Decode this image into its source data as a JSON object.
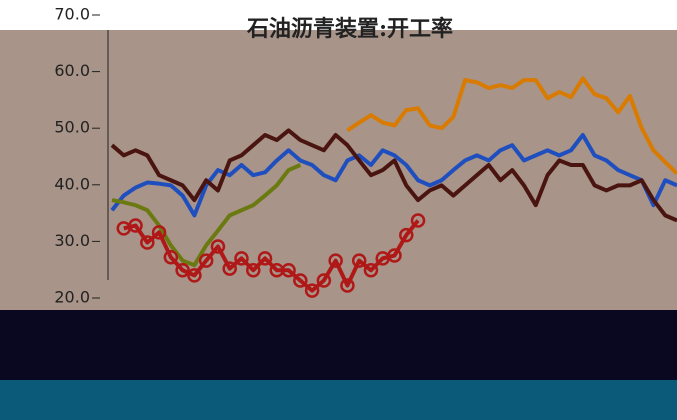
{
  "chart_data": {
    "type": "line",
    "title": "石油沥青装置:开工率",
    "categories": [
      null,
      null,
      null,
      null,
      null,
      null,
      null,
      null,
      null,
      null,
      null,
      null,
      null,
      null,
      null,
      null,
      null,
      null,
      null,
      null,
      null,
      null,
      null,
      null,
      null,
      null,
      null,
      null,
      null,
      null,
      null,
      null,
      null,
      null,
      null,
      null,
      null,
      null,
      null,
      null,
      null,
      null,
      null,
      null,
      null,
      null,
      null,
      null,
      null
    ],
    "ylim": [
      20,
      70
    ],
    "yticks": [
      {
        "value": 20,
        "label": "20.0"
      },
      {
        "value": 30,
        "label": "30.0"
      },
      {
        "value": 40,
        "label": "40.0"
      },
      {
        "value": 50,
        "label": "50.0"
      },
      {
        "value": 60,
        "label": "60.0"
      },
      {
        "value": 70,
        "label": "70.0"
      }
    ],
    "series": [
      {
        "color": "#d97b00",
        "values": [
          null,
          null,
          null,
          null,
          null,
          null,
          null,
          null,
          null,
          null,
          null,
          null,
          null,
          null,
          null,
          null,
          null,
          null,
          null,
          null,
          49.6,
          51,
          52.3,
          51,
          50.5,
          53.2,
          53.5,
          50.5,
          50,
          52,
          58.5,
          58.1,
          57.1,
          57.6,
          57.1,
          58.5,
          58.5,
          55.3,
          56.4,
          55.5,
          58.8,
          56,
          55.3,
          52.8,
          55.7,
          50,
          46.1,
          44,
          42
        ]
      },
      {
        "color": "#1f4fbf",
        "values": [
          35.5,
          38.1,
          39.5,
          40.4,
          40.2,
          39.9,
          38.1,
          34.6,
          39.9,
          42.6,
          41.7,
          43.5,
          41.7,
          42.2,
          44.3,
          46.1,
          44.3,
          43.5,
          41.7,
          40.8,
          44.3,
          45.2,
          43.5,
          46.1,
          45.2,
          43.5,
          40.8,
          39.9,
          40.8,
          42.6,
          44.3,
          45.2,
          44.3,
          46.1,
          47,
          44.3,
          45.2,
          46.1,
          45.2,
          46.1,
          48.8,
          45.2,
          44.3,
          42.6,
          41.7,
          40.8,
          36.4,
          40.8,
          39.9
        ]
      },
      {
        "color": "#4a1510",
        "values": [
          47,
          45.2,
          46.1,
          45.2,
          41.7,
          40.8,
          39.9,
          37.3,
          40.8,
          39,
          44.3,
          45.2,
          47,
          48.8,
          47.9,
          49.6,
          47.9,
          47,
          46.1,
          48.8,
          47,
          44.3,
          41.7,
          42.6,
          44.3,
          39.9,
          37.3,
          39,
          39.9,
          38.1,
          39.9,
          41.7,
          43.5,
          40.8,
          42.6,
          39.9,
          36.4,
          41.7,
          44.3,
          43.5,
          43.5,
          39.9,
          39,
          39.9,
          39.9,
          40.8,
          37.3,
          34.6,
          33.7
        ]
      },
      {
        "color": "#6b7a10",
        "values": [
          37.3,
          36.9,
          36.4,
          35.5,
          32.8,
          29.3,
          26.6,
          25.8,
          29.3,
          31.9,
          34.6,
          35.5,
          36.4,
          38.1,
          39.9,
          42.6,
          43.5,
          null,
          null,
          null,
          null,
          null,
          null,
          null,
          null,
          null,
          null,
          null,
          null,
          null,
          null,
          null,
          null,
          null,
          null,
          null,
          null,
          null,
          null,
          null,
          null,
          null,
          null,
          null,
          null,
          null,
          null,
          null,
          null
        ]
      },
      {
        "color": "#b01818",
        "marker": "circle",
        "values": [
          null,
          32.3,
          32.8,
          29.8,
          31.6,
          27.2,
          24.9,
          24,
          26.6,
          29.1,
          25.2,
          27,
          24.9,
          27,
          24.9,
          24.9,
          23.1,
          21.3,
          23.1,
          26.6,
          22.2,
          26.6,
          24.9,
          27,
          27.5,
          31.1,
          33.7,
          null,
          null,
          null,
          null,
          null,
          null,
          null,
          null,
          null,
          null,
          null,
          null,
          null,
          null,
          null,
          null,
          null,
          null,
          null,
          null,
          null,
          null
        ]
      }
    ]
  }
}
